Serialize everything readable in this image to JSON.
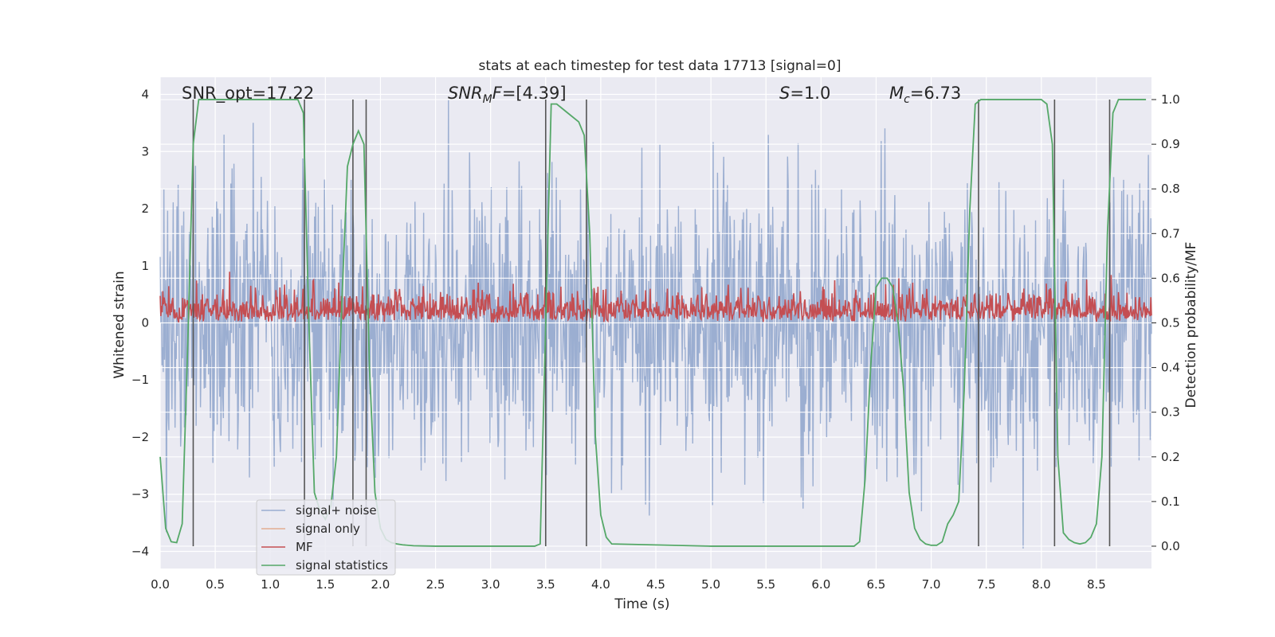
{
  "chart_data": {
    "type": "line",
    "title": "stats at each timestep for test data 17713 [signal=0]",
    "xlabel": "Time (s)",
    "ylabel_left": "Whitened strain",
    "ylabel_right": "Detection probability/MF",
    "xlim": [
      0,
      9
    ],
    "ylim_left": [
      -4.3,
      4.3
    ],
    "ylim_right": [
      -0.05,
      1.05
    ],
    "x_ticks": [
      "0.0",
      "0.5",
      "1.0",
      "1.5",
      "2.0",
      "2.5",
      "3.0",
      "3.5",
      "4.0",
      "4.5",
      "5.0",
      "5.5",
      "6.0",
      "6.5",
      "7.0",
      "7.5",
      "8.0",
      "8.5"
    ],
    "y_ticks_left": [
      "4",
      "3",
      "2",
      "1",
      "0",
      "−1",
      "−2",
      "−3",
      "−4"
    ],
    "y_ticks_right": [
      "1.0",
      "0.9",
      "0.8",
      "0.7",
      "0.6",
      "0.5",
      "0.4",
      "0.3",
      "0.2",
      "0.1",
      "0.0"
    ],
    "grid": true,
    "annotations": {
      "snr_opt": "SNR_opt=17.22",
      "snr_mf": "=[4.39]",
      "s_value": "=1.0",
      "mc_value": "=6.73"
    },
    "legend": {
      "placement": "lower-left",
      "entries": [
        "signal+ noise",
        "signal only",
        "MF",
        "signal statistics"
      ]
    },
    "colors": {
      "noise": "#4c72b0",
      "signal_only": "#dd8452",
      "mf": "#c44e52",
      "statistics": "#55a868",
      "vlines": "#555555",
      "axes_bg": "#eaeaf2"
    },
    "vertical_lines_x": [
      0.3,
      1.31,
      1.75,
      1.87,
      3.5,
      3.87,
      7.43,
      8.12,
      8.62
    ],
    "series": [
      {
        "name": "signal statistics",
        "axis": "right",
        "x": [
          0.0,
          0.05,
          0.1,
          0.15,
          0.2,
          0.25,
          0.3,
          0.35,
          0.4,
          0.5,
          0.6,
          0.7,
          0.8,
          0.9,
          1.0,
          1.1,
          1.2,
          1.25,
          1.3,
          1.35,
          1.4,
          1.45,
          1.5,
          1.55,
          1.6,
          1.65,
          1.7,
          1.75,
          1.8,
          1.85,
          1.9,
          1.95,
          2.0,
          2.05,
          2.1,
          2.15,
          2.2,
          2.3,
          2.5,
          3.0,
          3.4,
          3.45,
          3.5,
          3.55,
          3.6,
          3.65,
          3.7,
          3.8,
          3.85,
          3.9,
          3.95,
          4.0,
          4.05,
          4.1,
          5.0,
          6.0,
          6.3,
          6.35,
          6.4,
          6.45,
          6.5,
          6.55,
          6.6,
          6.65,
          6.7,
          6.75,
          6.8,
          6.85,
          6.9,
          6.95,
          7.0,
          7.05,
          7.1,
          7.15,
          7.2,
          7.25,
          7.3,
          7.35,
          7.4,
          7.45,
          7.5,
          7.55,
          7.6,
          8.0,
          8.05,
          8.1,
          8.15,
          8.2,
          8.25,
          8.3,
          8.35,
          8.4,
          8.45,
          8.5,
          8.55,
          8.6,
          8.65,
          8.7,
          8.75,
          8.8,
          8.95
        ],
        "values": [
          0.2,
          0.04,
          0.01,
          0.008,
          0.05,
          0.45,
          0.9,
          1.0,
          1.0,
          1.0,
          1.0,
          1.0,
          1.0,
          1.0,
          1.0,
          1.0,
          1.0,
          1.0,
          0.97,
          0.5,
          0.12,
          0.08,
          0.06,
          0.09,
          0.2,
          0.55,
          0.85,
          0.9,
          0.93,
          0.9,
          0.4,
          0.12,
          0.04,
          0.015,
          0.008,
          0.005,
          0.003,
          0.001,
          0.0,
          0.0,
          0.0,
          0.005,
          0.5,
          0.99,
          0.99,
          0.98,
          0.97,
          0.95,
          0.92,
          0.7,
          0.25,
          0.07,
          0.02,
          0.005,
          0.0,
          0.0,
          0.0,
          0.01,
          0.15,
          0.4,
          0.58,
          0.6,
          0.6,
          0.58,
          0.5,
          0.35,
          0.12,
          0.04,
          0.015,
          0.005,
          0.002,
          0.002,
          0.01,
          0.05,
          0.07,
          0.1,
          0.35,
          0.75,
          0.99,
          1.0,
          1.0,
          1.0,
          1.0,
          1.0,
          0.99,
          0.9,
          0.2,
          0.03,
          0.015,
          0.008,
          0.005,
          0.008,
          0.02,
          0.05,
          0.2,
          0.7,
          0.97,
          1.0,
          1.0,
          1.0,
          1.0
        ]
      }
    ]
  }
}
